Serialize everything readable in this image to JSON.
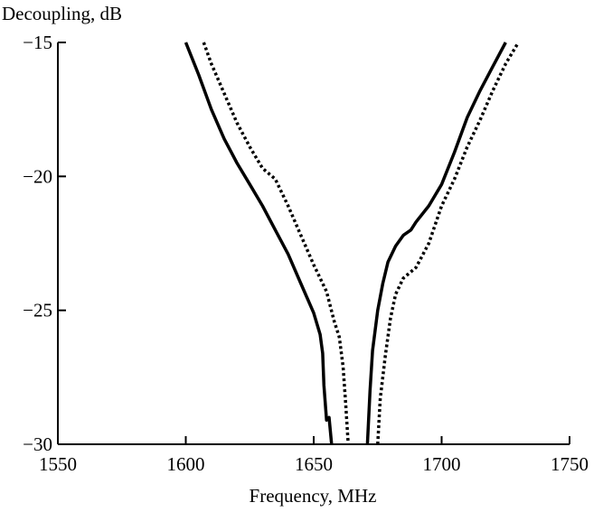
{
  "chart_data": {
    "type": "line",
    "xlabel": "Frequency, MHz",
    "ylabel": "Decoupling, dB",
    "xlim": [
      1550,
      1750
    ],
    "ylim": [
      -30,
      -15
    ],
    "xticks": [
      1550,
      1600,
      1650,
      1700,
      1750
    ],
    "yticks": [
      -15,
      -20,
      -25,
      -30
    ],
    "grid": false,
    "legend": "none",
    "series": [
      {
        "style": "solid",
        "color": "#000000",
        "points": [
          [
            1600,
            -15.0
          ],
          [
            1605,
            -16.2
          ],
          [
            1610,
            -17.5
          ],
          [
            1615,
            -18.6
          ],
          [
            1620,
            -19.5
          ],
          [
            1625,
            -20.3
          ],
          [
            1630,
            -21.1
          ],
          [
            1635,
            -22.0
          ],
          [
            1640,
            -22.9
          ],
          [
            1645,
            -24.0
          ],
          [
            1650,
            -25.1
          ],
          [
            1652.5,
            -25.9
          ],
          [
            1653.5,
            -26.6
          ],
          [
            1654,
            -27.8
          ],
          [
            1655,
            -29.1
          ],
          [
            1656,
            -29.0
          ],
          [
            1657,
            -30.0
          ]
        ]
      },
      {
        "style": "solid",
        "color": "#000000",
        "points": [
          [
            1671,
            -30.0
          ],
          [
            1672,
            -28.0
          ],
          [
            1673,
            -26.5
          ],
          [
            1675,
            -25.0
          ],
          [
            1677,
            -24.0
          ],
          [
            1679,
            -23.2
          ],
          [
            1682,
            -22.6
          ],
          [
            1685,
            -22.2
          ],
          [
            1688,
            -22.0
          ],
          [
            1690,
            -21.7
          ],
          [
            1695,
            -21.1
          ],
          [
            1700,
            -20.3
          ],
          [
            1705,
            -19.1
          ],
          [
            1710,
            -17.8
          ],
          [
            1715,
            -16.8
          ],
          [
            1720,
            -15.9
          ],
          [
            1725,
            -15.0
          ]
        ]
      },
      {
        "style": "dotted",
        "color": "#000000",
        "points": [
          [
            1607,
            -15.0
          ],
          [
            1610,
            -15.8
          ],
          [
            1615,
            -16.9
          ],
          [
            1620,
            -18.0
          ],
          [
            1625,
            -18.9
          ],
          [
            1630,
            -19.7
          ],
          [
            1635,
            -20.1
          ],
          [
            1640,
            -21.1
          ],
          [
            1645,
            -22.2
          ],
          [
            1650,
            -23.3
          ],
          [
            1655,
            -24.3
          ],
          [
            1658,
            -25.4
          ],
          [
            1660,
            -26.0
          ],
          [
            1661.5,
            -27.1
          ],
          [
            1662.5,
            -28.5
          ],
          [
            1663.5,
            -30.0
          ]
        ]
      },
      {
        "style": "dotted",
        "color": "#000000",
        "points": [
          [
            1675,
            -30.0
          ],
          [
            1676,
            -28.3
          ],
          [
            1678,
            -26.7
          ],
          [
            1680,
            -25.3
          ],
          [
            1682,
            -24.4
          ],
          [
            1685,
            -23.8
          ],
          [
            1690,
            -23.4
          ],
          [
            1695,
            -22.5
          ],
          [
            1700,
            -21.1
          ],
          [
            1705,
            -20.1
          ],
          [
            1710,
            -18.9
          ],
          [
            1715,
            -17.9
          ],
          [
            1720,
            -16.8
          ],
          [
            1725,
            -15.8
          ],
          [
            1730,
            -15.0
          ]
        ]
      }
    ]
  }
}
